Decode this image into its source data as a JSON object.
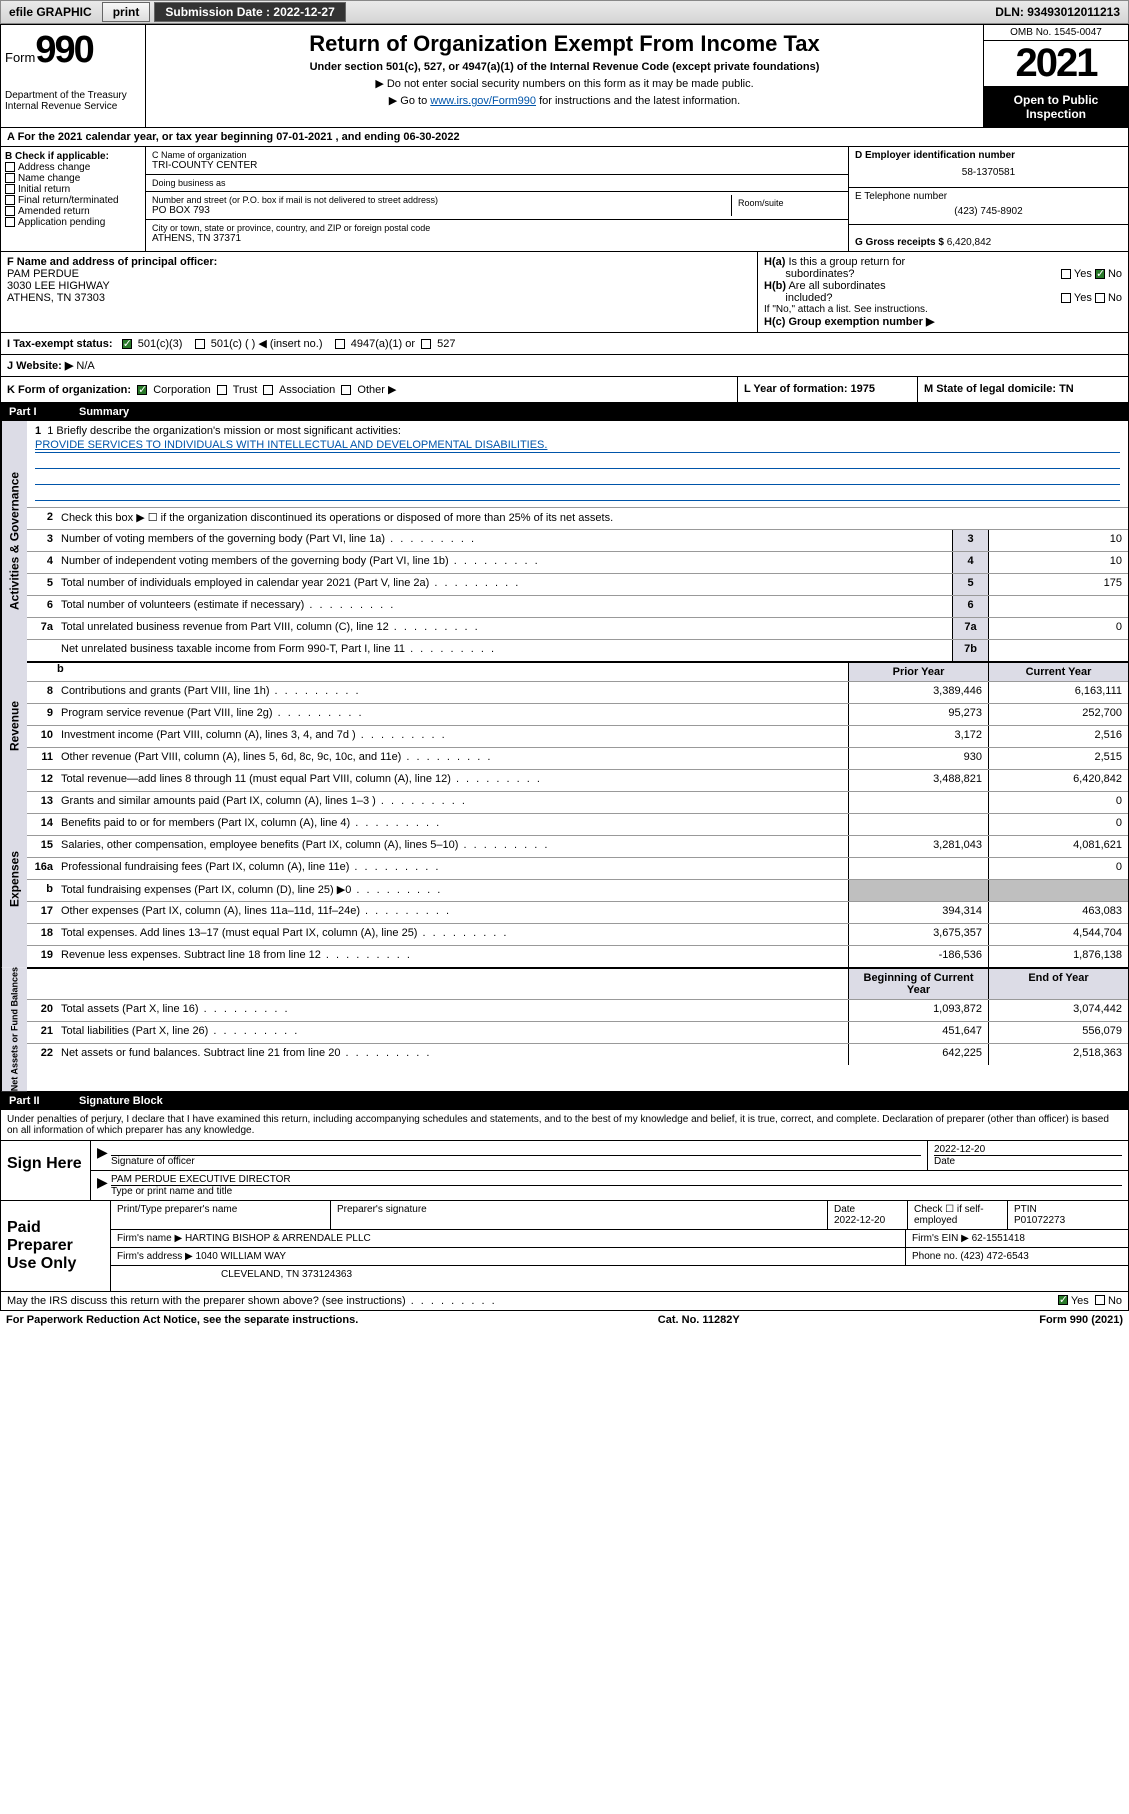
{
  "topbar": {
    "efile": "efile GRAPHIC",
    "print": "print",
    "subm_lbl": "Submission Date : ",
    "subm_date": "2022-12-27",
    "dln_lbl": "DLN: ",
    "dln": "93493012011213"
  },
  "header": {
    "form_word": "Form",
    "form_num": "990",
    "dept": "Department of the Treasury",
    "irs": "Internal Revenue Service",
    "title": "Return of Organization Exempt From Income Tax",
    "sub": "Under section 501(c), 527, or 4947(a)(1) of the Internal Revenue Code (except private foundations)",
    "line1": "▶ Do not enter social security numbers on this form as it may be made public.",
    "line2a": "▶ Go to ",
    "line2link": "www.irs.gov/Form990",
    "line2b": " for instructions and the latest information.",
    "omb": "OMB No. 1545-0047",
    "year": "2021",
    "open1": "Open to Public",
    "open2": "Inspection"
  },
  "rowA": "A For the 2021 calendar year, or tax year beginning 07-01-2021    , and ending 06-30-2022",
  "colB": {
    "hdr": "B Check if applicable:",
    "items": [
      "Address change",
      "Name change",
      "Initial return",
      "Final return/terminated",
      "Amended return",
      "Application pending"
    ]
  },
  "colC": {
    "name_lbl": "C Name of organization",
    "name": "TRI-COUNTY CENTER",
    "dba_lbl": "Doing business as",
    "dba": "",
    "street_lbl": "Number and street (or P.O. box if mail is not delivered to street address)",
    "room_lbl": "Room/suite",
    "street": "PO BOX 793",
    "city_lbl": "City or town, state or province, country, and ZIP or foreign postal code",
    "city": "ATHENS, TN  37371"
  },
  "colD": {
    "ein_lbl": "D Employer identification number",
    "ein": "58-1370581",
    "tel_lbl": "E Telephone number",
    "tel": "(423) 745-8902",
    "gross_lbl": "G Gross receipts $ ",
    "gross": "6,420,842"
  },
  "rowF": {
    "f_lbl": "F  Name and address of principal officer:",
    "f_name": "PAM PERDUE",
    "f_addr1": "3030 LEE HIGHWAY",
    "f_addr2": "ATHENS, TN  37303",
    "ha": "H(a)  Is this a group return for subordinates?",
    "hb": "H(b)  Are all subordinates included?",
    "hb2": "If \"No,\" attach a list. See instructions.",
    "hc": "H(c)  Group exemption number ▶",
    "yes": "Yes",
    "no": "No"
  },
  "rowI": {
    "lbl": "I    Tax-exempt status:",
    "o1": "501(c)(3)",
    "o2": "501(c) (  ) ◀ (insert no.)",
    "o3": "4947(a)(1) or",
    "o4": "527"
  },
  "rowJ": {
    "lbl": "J    Website: ▶",
    "val": " N/A"
  },
  "rowK": {
    "k": "K Form of organization:",
    "corp": "Corporation",
    "trust": "Trust",
    "assoc": "Association",
    "other": "Other ▶",
    "l": "L Year of formation: 1975",
    "m": "M State of legal domicile: TN"
  },
  "parts": {
    "p1": "Part I",
    "p1t": "Summary",
    "p2": "Part II",
    "p2t": "Signature Block"
  },
  "sides": {
    "s1": "Activities & Governance",
    "s2": "Revenue",
    "s3": "Expenses",
    "s4": "Net Assets or Fund Balances"
  },
  "mission": {
    "q": "1   Briefly describe the organization's mission or most significant activities:",
    "a": "PROVIDE SERVICES TO INDIVIDUALS WITH INTELLECTUAL AND DEVELOPMENTAL DISABILITIES."
  },
  "line2": "Check this box ▶ ☐  if the organization discontinued its operations or disposed of more than 25% of its net assets.",
  "gov_lines": [
    {
      "n": "3",
      "t": "Number of voting members of the governing body (Part VI, line 1a)",
      "box": "3",
      "v": "10"
    },
    {
      "n": "4",
      "t": "Number of independent voting members of the governing body (Part VI, line 1b)",
      "box": "4",
      "v": "10"
    },
    {
      "n": "5",
      "t": "Total number of individuals employed in calendar year 2021 (Part V, line 2a)",
      "box": "5",
      "v": "175"
    },
    {
      "n": "6",
      "t": "Total number of volunteers (estimate if necessary)",
      "box": "6",
      "v": ""
    },
    {
      "n": "7a",
      "t": "Total unrelated business revenue from Part VIII, column (C), line 12",
      "box": "7a",
      "v": "0"
    },
    {
      "n": "",
      "t": "Net unrelated business taxable income from Form 990-T, Part I, line 11",
      "box": "7b",
      "v": ""
    }
  ],
  "colhdr": {
    "b": "b",
    "py": "Prior Year",
    "cy": "Current Year",
    "boy": "Beginning of Current Year",
    "eoy": "End of Year"
  },
  "rev": [
    {
      "n": "8",
      "t": "Contributions and grants (Part VIII, line 1h)",
      "p": "3,389,446",
      "c": "6,163,111"
    },
    {
      "n": "9",
      "t": "Program service revenue (Part VIII, line 2g)",
      "p": "95,273",
      "c": "252,700"
    },
    {
      "n": "10",
      "t": "Investment income (Part VIII, column (A), lines 3, 4, and 7d )",
      "p": "3,172",
      "c": "2,516"
    },
    {
      "n": "11",
      "t": "Other revenue (Part VIII, column (A), lines 5, 6d, 8c, 9c, 10c, and 11e)",
      "p": "930",
      "c": "2,515"
    },
    {
      "n": "12",
      "t": "Total revenue—add lines 8 through 11 (must equal Part VIII, column (A), line 12)",
      "p": "3,488,821",
      "c": "6,420,842"
    }
  ],
  "exp": [
    {
      "n": "13",
      "t": "Grants and similar amounts paid (Part IX, column (A), lines 1–3 )",
      "p": "",
      "c": "0"
    },
    {
      "n": "14",
      "t": "Benefits paid to or for members (Part IX, column (A), line 4)",
      "p": "",
      "c": "0"
    },
    {
      "n": "15",
      "t": "Salaries, other compensation, employee benefits (Part IX, column (A), lines 5–10)",
      "p": "3,281,043",
      "c": "4,081,621"
    },
    {
      "n": "16a",
      "t": "Professional fundraising fees (Part IX, column (A), line 11e)",
      "p": "",
      "c": "0"
    },
    {
      "n": "b",
      "t": "Total fundraising expenses (Part IX, column (D), line 25) ▶0",
      "p": "shade",
      "c": "shade"
    },
    {
      "n": "17",
      "t": "Other expenses (Part IX, column (A), lines 11a–11d, 11f–24e)",
      "p": "394,314",
      "c": "463,083"
    },
    {
      "n": "18",
      "t": "Total expenses. Add lines 13–17 (must equal Part IX, column (A), line 25)",
      "p": "3,675,357",
      "c": "4,544,704"
    },
    {
      "n": "19",
      "t": "Revenue less expenses. Subtract line 18 from line 12",
      "p": "-186,536",
      "c": "1,876,138"
    }
  ],
  "net": [
    {
      "n": "20",
      "t": "Total assets (Part X, line 16)",
      "p": "1,093,872",
      "c": "3,074,442"
    },
    {
      "n": "21",
      "t": "Total liabilities (Part X, line 26)",
      "p": "451,647",
      "c": "556,079"
    },
    {
      "n": "22",
      "t": "Net assets or fund balances. Subtract line 21 from line 20",
      "p": "642,225",
      "c": "2,518,363"
    }
  ],
  "sig": {
    "decl": "Under penalties of perjury, I declare that I have examined this return, including accompanying schedules and statements, and to the best of my knowledge and belief, it is true, correct, and complete. Declaration of preparer (other than officer) is based on all information of which preparer has any knowledge.",
    "sign_here": "Sign Here",
    "sig_officer": "Signature of officer",
    "date": "Date",
    "date_val": "2022-12-20",
    "name": "PAM PERDUE  EXECUTIVE DIRECTOR",
    "name_lbl": "Type or print name and title"
  },
  "prep": {
    "lbl": "Paid Preparer Use Only",
    "h1": "Print/Type preparer's name",
    "h2": "Preparer's signature",
    "h3": "Date",
    "h3v": "2022-12-20",
    "h4": "Check ☐ if self-employed",
    "h5": "PTIN",
    "h5v": "P01072273",
    "firm_lbl": "Firm's name    ▶ ",
    "firm": "HARTING BISHOP & ARRENDALE PLLC",
    "ein_lbl": "Firm's EIN ▶ ",
    "ein": "62-1551418",
    "addr_lbl": "Firm's address ▶ ",
    "addr1": "1040 WILLIAM WAY",
    "addr2": "CLEVELAND, TN  373124363",
    "phone_lbl": "Phone no. ",
    "phone": "(423) 472-6543"
  },
  "footer": {
    "may": "May the IRS discuss this return with the preparer shown above? (see instructions)",
    "yes": "Yes",
    "no": "No",
    "pra": "For Paperwork Reduction Act Notice, see the separate instructions.",
    "cat": "Cat. No. 11282Y",
    "form": "Form 990 (2021)"
  },
  "colors": {
    "link": "#0055aa",
    "sideband": "#dcdce6",
    "shade": "#bfbfbf",
    "check": "#2a7a2a"
  }
}
